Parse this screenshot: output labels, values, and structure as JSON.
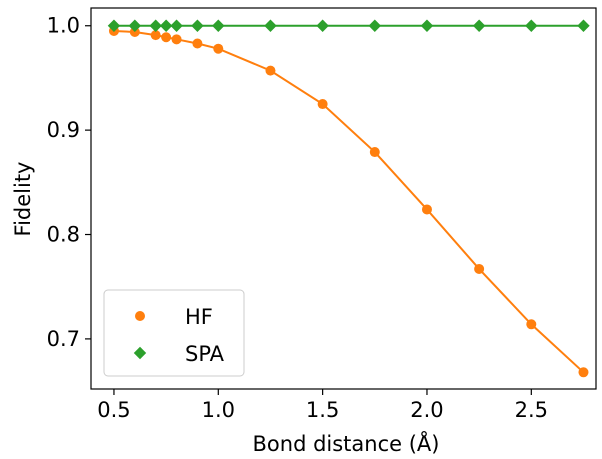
{
  "chart_data": {
    "type": "line",
    "title": "",
    "xlabel": "Bond distance (Å)",
    "ylabel": "Fidelity",
    "xlim": [
      0.39,
      2.81
    ],
    "ylim": [
      0.652,
      1.017
    ],
    "xticks": [
      0.5,
      1.0,
      1.5,
      2.0,
      2.5
    ],
    "xtick_labels": [
      "0.5",
      "1.0",
      "1.5",
      "2.0",
      "2.5"
    ],
    "yticks": [
      0.7,
      0.8,
      0.9,
      1.0
    ],
    "ytick_labels": [
      "0.7",
      "0.8",
      "0.9",
      "1.0"
    ],
    "grid": false,
    "legend_position": "lower-left",
    "series": [
      {
        "name": "HF",
        "color": "#ff7f0e",
        "marker": "circle",
        "x": [
          0.5,
          0.6,
          0.7,
          0.75,
          0.8,
          0.9,
          1.0,
          1.25,
          1.5,
          1.75,
          2.0,
          2.25,
          2.5,
          2.75
        ],
        "y": [
          0.995,
          0.994,
          0.991,
          0.989,
          0.987,
          0.983,
          0.978,
          0.957,
          0.925,
          0.879,
          0.824,
          0.767,
          0.714,
          0.668
        ]
      },
      {
        "name": "SPA",
        "color": "#2ca02c",
        "marker": "diamond",
        "x": [
          0.5,
          0.6,
          0.7,
          0.75,
          0.8,
          0.9,
          1.0,
          1.25,
          1.5,
          1.75,
          2.0,
          2.25,
          2.5,
          2.75
        ],
        "y": [
          1.0,
          1.0,
          1.0,
          1.0,
          1.0,
          1.0,
          1.0,
          1.0,
          1.0,
          1.0,
          1.0,
          1.0,
          1.0,
          1.0
        ]
      }
    ]
  }
}
